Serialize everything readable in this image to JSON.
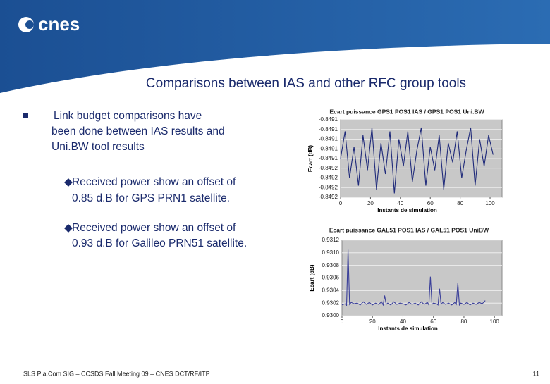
{
  "slide": {
    "logo": "cnes",
    "title": "Comparisons between IAS and other RFC group tools",
    "bullet_lines": [
      "Link budget comparisons have",
      "been done between IAS results and",
      "Uni.BW tool results"
    ],
    "sub_bullets": [
      [
        "Received power show an offset of",
        "0.85 d.B for GPS PRN1 satellite."
      ],
      [
        "Received power show an offset of",
        "0.93 d.B for Galileo PRN51 satellite."
      ]
    ],
    "footer": "SLS Pla.Com SIG – CCSDS Fall Meeting 09 – CNES DCT/RF/ITP",
    "page": "11"
  },
  "chart_data": [
    {
      "type": "line",
      "title": "Ecart puissance GPS1 POS1 IAS / GPS1 POS1 Uni.BW",
      "y_label": "Ecart (dB)",
      "x_label": "Instants de simulation",
      "xlim": [
        0,
        108
      ],
      "xticks": [
        0,
        20,
        40,
        60,
        80,
        100
      ],
      "ylim": [
        -0.84925,
        -0.84905
      ],
      "yticks": [
        {
          "value": -0.84905,
          "label": "-0.8491"
        },
        {
          "value": -0.849075,
          "label": "-0.8491"
        },
        {
          "value": -0.8491,
          "label": "-0.8491"
        },
        {
          "value": -0.849125,
          "label": "-0.8491"
        },
        {
          "value": -0.84915,
          "label": "-0.8491"
        },
        {
          "value": -0.849175,
          "label": "-0.8492"
        },
        {
          "value": -0.8492,
          "label": "-0.8492"
        },
        {
          "value": -0.849225,
          "label": "-0.8492"
        },
        {
          "value": -0.84925,
          "label": "-0.8492"
        }
      ],
      "grid": true,
      "color": "#1f2a7a",
      "x": [
        0,
        3,
        6,
        9,
        12,
        15,
        18,
        21,
        24,
        27,
        30,
        33,
        36,
        39,
        42,
        45,
        48,
        51,
        54,
        57,
        60,
        63,
        66,
        69,
        72,
        75,
        78,
        81,
        84,
        87,
        90,
        93,
        96,
        99,
        102
      ],
      "values": [
        -0.84915,
        -0.84908,
        -0.8492,
        -0.84912,
        -0.84922,
        -0.84909,
        -0.84918,
        -0.84907,
        -0.84923,
        -0.84911,
        -0.84919,
        -0.84908,
        -0.84924,
        -0.8491,
        -0.84917,
        -0.84908,
        -0.84921,
        -0.84913,
        -0.84907,
        -0.84922,
        -0.84912,
        -0.84918,
        -0.84909,
        -0.84923,
        -0.84911,
        -0.84916,
        -0.84908,
        -0.8492,
        -0.84913,
        -0.84907,
        -0.84922,
        -0.8491,
        -0.84917,
        -0.84909,
        -0.84914
      ]
    },
    {
      "type": "line",
      "title": "Ecart puissance GAL51 POS1 IAS / GAL51 POS1 UniBW",
      "y_label": "Ecart (dB)",
      "x_label": "Instants de simulation",
      "xlim": [
        0,
        105
      ],
      "xticks": [
        0,
        20,
        40,
        60,
        80,
        100
      ],
      "ylim": [
        0.93,
        0.9312
      ],
      "yticks": [
        {
          "value": 0.93,
          "label": "0.9300"
        },
        {
          "value": 0.9302,
          "label": "0.9302"
        },
        {
          "value": 0.9304,
          "label": "0.9304"
        },
        {
          "value": 0.9306,
          "label": "0.9306"
        },
        {
          "value": 0.9308,
          "label": "0.9308"
        },
        {
          "value": 0.931,
          "label": "0.9310"
        },
        {
          "value": 0.9312,
          "label": "0.9312"
        }
      ],
      "grid": true,
      "color": "#3a3f9a",
      "x": [
        0,
        2,
        3,
        4,
        5,
        6,
        8,
        10,
        12,
        14,
        16,
        18,
        20,
        22,
        24,
        26,
        27,
        28,
        29,
        30,
        32,
        34,
        36,
        38,
        40,
        42,
        44,
        46,
        48,
        50,
        52,
        54,
        56,
        57,
        58,
        59,
        60,
        62,
        63,
        64,
        65,
        66,
        68,
        70,
        72,
        74,
        75,
        76,
        77,
        78,
        80,
        82,
        84,
        86,
        88,
        90,
        92,
        94
      ],
      "values": [
        0.93017,
        0.93019,
        0.93016,
        0.93105,
        0.93018,
        0.93021,
        0.93019,
        0.9302,
        0.93017,
        0.93022,
        0.93018,
        0.93021,
        0.93017,
        0.9302,
        0.93018,
        0.93022,
        0.93017,
        0.93032,
        0.93018,
        0.9302,
        0.93017,
        0.93022,
        0.93018,
        0.9302,
        0.93019,
        0.93017,
        0.93021,
        0.93018,
        0.9302,
        0.93017,
        0.93022,
        0.93018,
        0.93021,
        0.93017,
        0.93062,
        0.93018,
        0.9302,
        0.93019,
        0.93017,
        0.93043,
        0.93018,
        0.93021,
        0.93018,
        0.9302,
        0.93017,
        0.93021,
        0.93018,
        0.93052,
        0.93017,
        0.9302,
        0.93018,
        0.93021,
        0.93017,
        0.9302,
        0.93018,
        0.93021,
        0.93019,
        0.93024
      ]
    }
  ]
}
